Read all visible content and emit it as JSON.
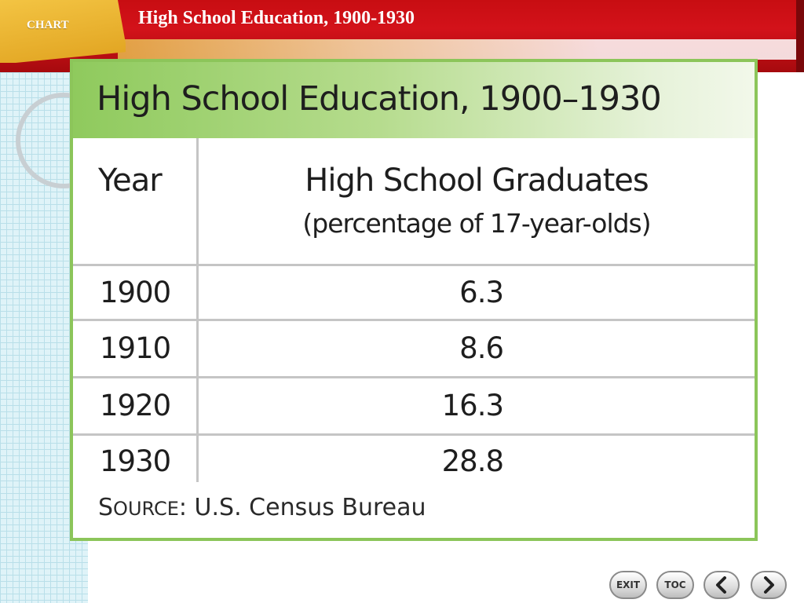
{
  "header": {
    "tab_label": "CHART",
    "title": "High School Education, 1900-1930"
  },
  "card": {
    "title": "High School Education, 1900–1930",
    "columns": {
      "year": "Year",
      "graduates": "High School Graduates",
      "graduates_sub": "(percentage of 17-year-olds)"
    },
    "rows": [
      {
        "year": "1900",
        "value": "6.3"
      },
      {
        "year": "1910",
        "value": "8.6"
      },
      {
        "year": "1920",
        "value": "16.3"
      },
      {
        "year": "1930",
        "value": "28.8"
      }
    ],
    "source_prefix_s": "S",
    "source_prefix_rest": "OURCE",
    "source_text": ": U.S. Census Bureau"
  },
  "nav": {
    "exit_label": "EXIT",
    "toc_label": "TOC",
    "back_icon": "chevron-left-icon",
    "forward_icon": "chevron-right-icon"
  },
  "colors": {
    "header_red": "#c80d12",
    "tab_gold": "#e8b233",
    "card_green": "#8cc55a"
  }
}
